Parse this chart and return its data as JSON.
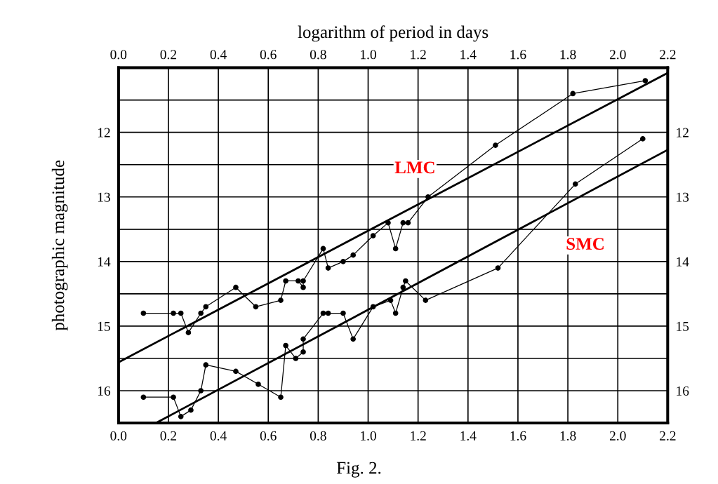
{
  "chart_data": {
    "type": "line",
    "x2label": "logarithm of period in days",
    "ylabel": "photographic magnitude",
    "series": [
      {
        "color": "#000000",
        "x": [
          0.1,
          0.22,
          0.25,
          0.28,
          0.33,
          0.35,
          0.47,
          0.55,
          0.65,
          0.67,
          0.72,
          0.74,
          0.74,
          0.82,
          0.84,
          0.9,
          0.94,
          1.02,
          1.08,
          1.11,
          1.14,
          1.16,
          1.24,
          1.51,
          1.82,
          2.11
        ],
        "values": [
          14.8,
          14.8,
          14.8,
          15.1,
          14.8,
          14.7,
          14.4,
          14.7,
          14.6,
          14.3,
          14.3,
          14.4,
          14.3,
          13.8,
          14.1,
          14.0,
          13.9,
          13.6,
          13.4,
          13.8,
          13.4,
          13.4,
          13.0,
          12.2,
          11.4,
          11.2
        ]
      },
      {
        "color": "#000000",
        "x": [
          0.1,
          0.22,
          0.25,
          0.29,
          0.33,
          0.35,
          0.47,
          0.56,
          0.65,
          0.67,
          0.71,
          0.74,
          0.74,
          0.82,
          0.84,
          0.9,
          0.94,
          1.02,
          1.09,
          1.11,
          1.14,
          1.15,
          1.23,
          1.52,
          1.83,
          2.1
        ],
        "values": [
          16.1,
          16.1,
          16.4,
          16.3,
          16.0,
          15.6,
          15.7,
          15.9,
          16.1,
          15.3,
          15.5,
          15.4,
          15.2,
          14.8,
          14.8,
          14.8,
          15.2,
          14.7,
          14.6,
          14.8,
          14.4,
          14.3,
          14.6,
          14.1,
          12.8,
          12.1
        ]
      },
      {
        "name": "LMC",
        "color": "#000000",
        "marker": "none",
        "x": [
          0.0,
          2.2
        ],
        "values": [
          15.56,
          11.08
        ]
      },
      {
        "name": "SMC",
        "color": "#000000",
        "marker": "none",
        "x": [
          0.15,
          2.2
        ],
        "values": [
          16.5,
          12.27
        ]
      }
    ],
    "annotations": [
      "Fig. 2."
    ],
    "xlim": [
      0.0,
      2.2
    ],
    "xticks": [
      {
        "value": 0,
        "label": "0.0"
      },
      0.2,
      0.4,
      0.6,
      0.8,
      {
        "value": 1,
        "label": "1.0"
      },
      1.2,
      1.4,
      1.6,
      1.8,
      {
        "value": 2,
        "label": "2.0"
      },
      2.2
    ],
    "x2lim": [
      0.0,
      2.2
    ],
    "x2ticks": [
      {
        "value": 0,
        "label": "0.0"
      },
      0.2,
      0.4,
      0.6,
      0.8,
      {
        "value": 1,
        "label": "1.0"
      },
      1.2,
      1.4,
      1.6,
      1.8,
      {
        "value": 2,
        "label": "2.0"
      },
      2.2
    ],
    "ylim": [
      16.5,
      11.0
    ],
    "yticks": [
      {
        "value": 11.5,
        "label": null
      },
      12,
      {
        "value": 12.5,
        "label": null
      },
      13,
      {
        "value": 13.5,
        "label": null
      },
      14,
      {
        "value": 14.5,
        "label": null
      },
      15,
      {
        "value": 15.5,
        "label": null
      },
      16
    ],
    "y2lim": [
      16.5,
      11.0
    ],
    "y2ticks": [
      12,
      13,
      14,
      15,
      16
    ],
    "grid": true,
    "marker": "circle",
    "line_style": "solid"
  }
}
